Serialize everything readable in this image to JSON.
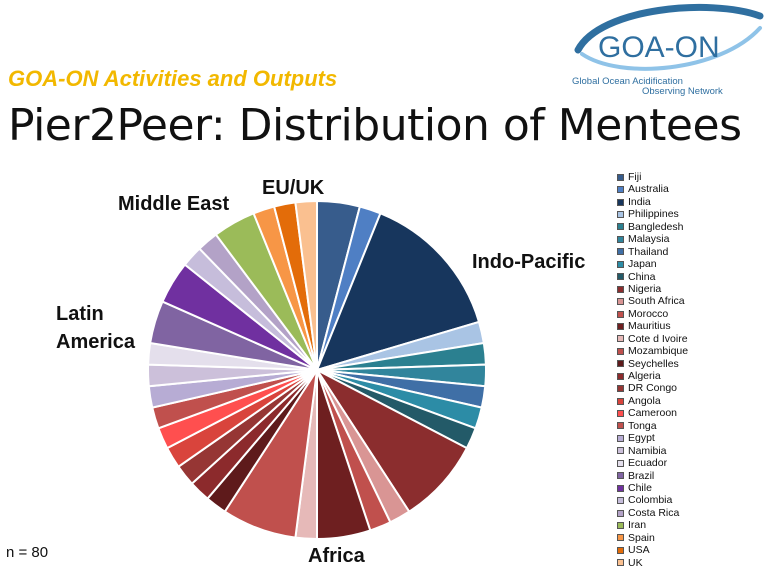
{
  "header": {
    "subtitle": "GOA-ON Activities and Outputs",
    "title": "Pier2Peer: Distribution of Mentees"
  },
  "logo": {
    "text": "GOA-ON",
    "tagline_line1": "Global Ocean Acidification",
    "tagline_line2": "Observing Network"
  },
  "sample_size": "n = 80",
  "chart_data": {
    "type": "pie",
    "categories": [
      "Fiji",
      "Australia",
      "India",
      "Philippines",
      "Bangledesh",
      "Malaysia",
      "Thailand",
      "Japan",
      "China",
      "Nigeria",
      "South Africa",
      "Morocco",
      "Mauritius",
      "Cote d Ivoire",
      "Mozambique",
      "Seychelles",
      "Algeria",
      "DR Congo",
      "Angola",
      "Cameroon",
      "Tonga",
      "Egypt",
      "Namibia",
      "Ecuador",
      "Brazil",
      "Chile",
      "Colombia",
      "Costa Rica",
      "Iran",
      "Spain",
      "USA",
      "UK"
    ],
    "values": [
      4,
      2,
      14,
      2,
      2,
      2,
      2,
      2,
      2,
      8,
      2,
      2,
      5,
      2,
      7,
      2,
      2,
      2,
      2,
      2,
      2,
      2,
      2,
      2,
      4,
      4,
      2,
      2,
      4,
      2,
      2,
      2
    ],
    "colors": [
      "#375c8c",
      "#4f7fc4",
      "#17365d",
      "#a9c4e4",
      "#2b8090",
      "#31859c",
      "#3f6fa6",
      "#2c8ca6",
      "#235a68",
      "#8b2d2e",
      "#d99594",
      "#c0504d",
      "#6e1f20",
      "#e6b9b8",
      "#c0504d",
      "#5e1a1b",
      "#8c2a2c",
      "#963634",
      "#d9443c",
      "#ff4f4f",
      "#c0504d",
      "#b7acd4",
      "#ccc0da",
      "#e4dfec",
      "#8064a2",
      "#7030a0",
      "#c6bddb",
      "#b3a2c7",
      "#9bbb59",
      "#f79646",
      "#e36c09",
      "#fac090"
    ],
    "region_labels": [
      "Indo-Pacific",
      "Africa",
      "Latin America",
      "Middle East",
      "EU/UK"
    ],
    "legend_placement": "right"
  }
}
